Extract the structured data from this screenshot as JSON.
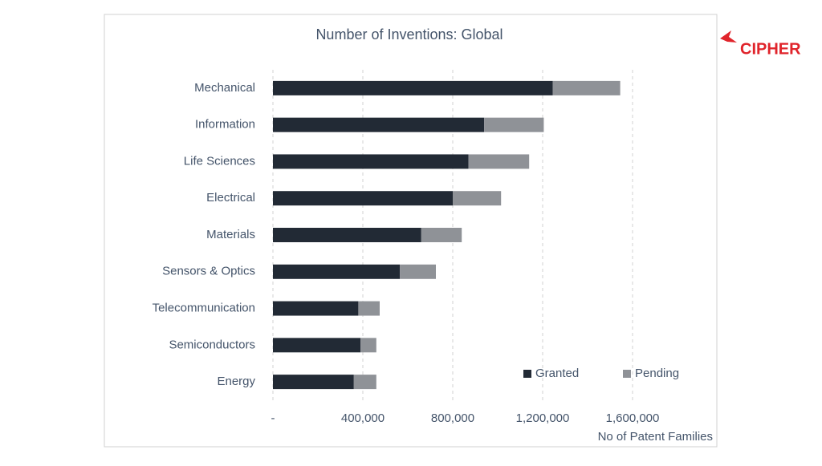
{
  "logo": "CIPHER",
  "chart_data": {
    "type": "bar",
    "orientation": "horizontal",
    "stacked": true,
    "title": "Number of Inventions: Global",
    "x_label": "No of Patent Families",
    "categories": [
      "Mechanical",
      "Information",
      "Life Sciences",
      "Electrical",
      "Materials",
      "Sensors & Optics",
      "Telecommunication",
      "Semiconductors",
      "Energy"
    ],
    "series": [
      {
        "name": "Granted",
        "color": "#222a35",
        "values": [
          1245000,
          940000,
          870000,
          800000,
          660000,
          565000,
          380000,
          390000,
          360000
        ]
      },
      {
        "name": "Pending",
        "color": "#8f9297",
        "values": [
          300000,
          265000,
          270000,
          215000,
          180000,
          160000,
          95000,
          70000,
          100000
        ]
      }
    ],
    "xlim": [
      0,
      1600000
    ],
    "xticks": [
      {
        "value": 0,
        "label": "-"
      },
      {
        "value": 400000,
        "label": "400,000"
      },
      {
        "value": 800000,
        "label": "800,000"
      },
      {
        "value": 1200000,
        "label": "1,200,000"
      },
      {
        "value": 1600000,
        "label": "1,600,000"
      }
    ],
    "grid": true,
    "legend": "lower right"
  }
}
